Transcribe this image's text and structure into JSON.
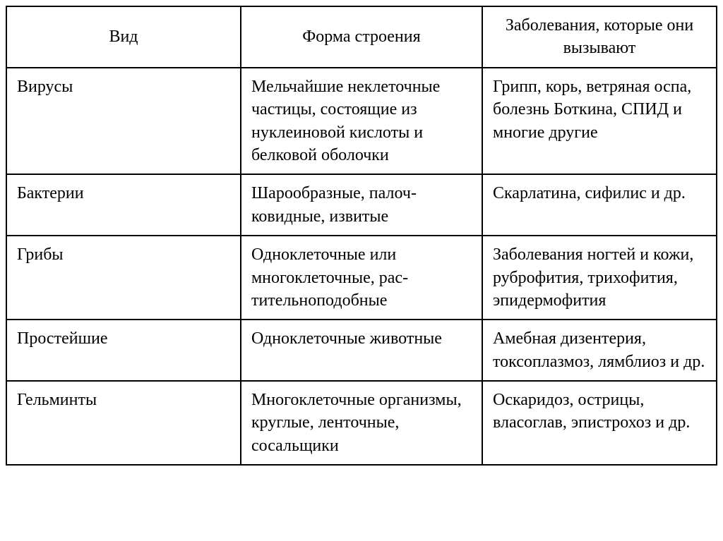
{
  "table": {
    "type": "table",
    "background_color": "#ffffff",
    "border_color": "#000000",
    "border_width": 2,
    "font_family": "Times New Roman",
    "font_size_pt": 18,
    "text_color": "#000000",
    "column_widths_percent": [
      33,
      34,
      33
    ],
    "columns": [
      {
        "header": "Вид",
        "align": "center"
      },
      {
        "header": "Форма строения",
        "align": "center"
      },
      {
        "header": "Заболевания, которые они вызывают",
        "align": "center"
      }
    ],
    "rows": [
      {
        "species": "Вирусы",
        "structure": "Мельчайшие неклеточ­ные частицы, состоя­щие из нуклеиновой кислоты и белковой оболочки",
        "diseases": "Грипп, корь, ветряная оспа, болезнь Ботки­на, СПИД и многие другие"
      },
      {
        "species": "Бактерии",
        "structure": "Шарообразные, палоч­ковидные, извитые",
        "diseases": "Скарлатина, сифилис и др."
      },
      {
        "species": "Грибы",
        "structure": "Одноклеточные или многоклеточные, рас­тительноподобные",
        "diseases": "Заболевания ногтей и кожи, руброфития, трихофития, эпидер­мофития"
      },
      {
        "species": "Простейшие",
        "structure": "Одноклеточные живот­ные",
        "diseases": "Амебная дизентерия, токсоплазмоз, лямб­лиоз и др."
      },
      {
        "species": "Гельминты",
        "structure": "Многоклеточные орга­низмы, круглые, лен­точные, сосальщики",
        "diseases": "Оскаридоз, острицы, власоглав, эпистрохоз и др."
      }
    ]
  }
}
